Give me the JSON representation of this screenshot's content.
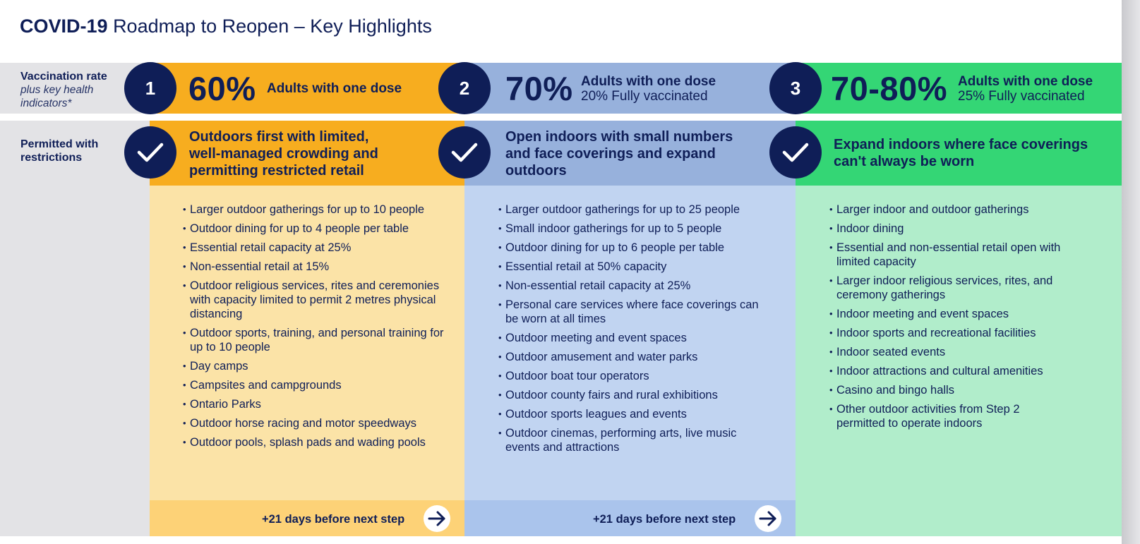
{
  "header": {
    "title_bold": "COVID-19",
    "title_rest": "Roadmap to Reopen – Key Highlights"
  },
  "left_labels": {
    "vaccination": "Vaccination rate",
    "vaccination_sub": "plus key health indicators*",
    "permitted": "Permitted with restrictions"
  },
  "steps": [
    {
      "number": "1",
      "percent": "60%",
      "desc_line1": "Adults with one dose",
      "desc_line2": "",
      "headline": "Outdoors first with limited, well-managed crowding and permitting restricted retail",
      "items": [
        "Larger outdoor gatherings for up to 10 people",
        "Outdoor dining for up to 4 people per table",
        "Essential retail capacity at 25%",
        "Non-essential retail at 15%",
        "Outdoor religious services, rites and ceremonies with capacity limited to permit 2 metres physical distancing",
        "Outdoor sports, training, and personal training for up to 10 people",
        "Day camps",
        "Campsites and campgrounds",
        "Ontario Parks",
        "Outdoor horse racing and motor speedways",
        "Outdoor pools, splash pads and wading pools"
      ],
      "footer": "+21 days before next step",
      "colors": {
        "dark": "#f7ad1f",
        "light": "#fbe3a7"
      }
    },
    {
      "number": "2",
      "percent": "70%",
      "desc_line1": "Adults with one dose",
      "desc_line2": "20% Fully vaccinated",
      "headline": "Open indoors with small numbers and face coverings and expand outdoors",
      "items": [
        "Larger outdoor gatherings for up to 25 people",
        "Small indoor gatherings for up to 5 people",
        "Outdoor dining for up to 6 people per table",
        "Essential retail at 50% capacity",
        "Non-essential retail capacity at 25%",
        "Personal care services where face coverings can be worn at all times",
        "Outdoor meeting and event spaces",
        "Outdoor amusement and water parks",
        "Outdoor boat tour operators",
        "Outdoor county fairs and rural exhibitions",
        "Outdoor sports leagues and events",
        "Outdoor cinemas, performing arts, live music events and attractions"
      ],
      "footer": "+21 days before next step",
      "colors": {
        "dark": "#97b1dc",
        "light": "#c1d4f1"
      }
    },
    {
      "number": "3",
      "percent": "70-80%",
      "desc_line1": "Adults with one dose",
      "desc_line2": "25% Fully vaccinated",
      "headline": "Expand indoors where face coverings can't always be worn",
      "items": [
        "Larger indoor and outdoor gatherings",
        "Indoor dining",
        "Essential and non-essential retail open with limited capacity",
        "Larger indoor religious services, rites, and ceremony gatherings",
        "Indoor meeting and event spaces",
        "Indoor sports and recreational facilities",
        "Indoor seated events",
        "Indoor attractions and cultural amenities",
        "Casino and bingo halls",
        "Other outdoor activities from Step 2 permitted to operate indoors"
      ],
      "footer": "",
      "colors": {
        "dark": "#34d675",
        "light": "#b1edcb"
      }
    }
  ],
  "icons": {
    "check": "check-icon",
    "arrow": "arrow-right-icon"
  }
}
